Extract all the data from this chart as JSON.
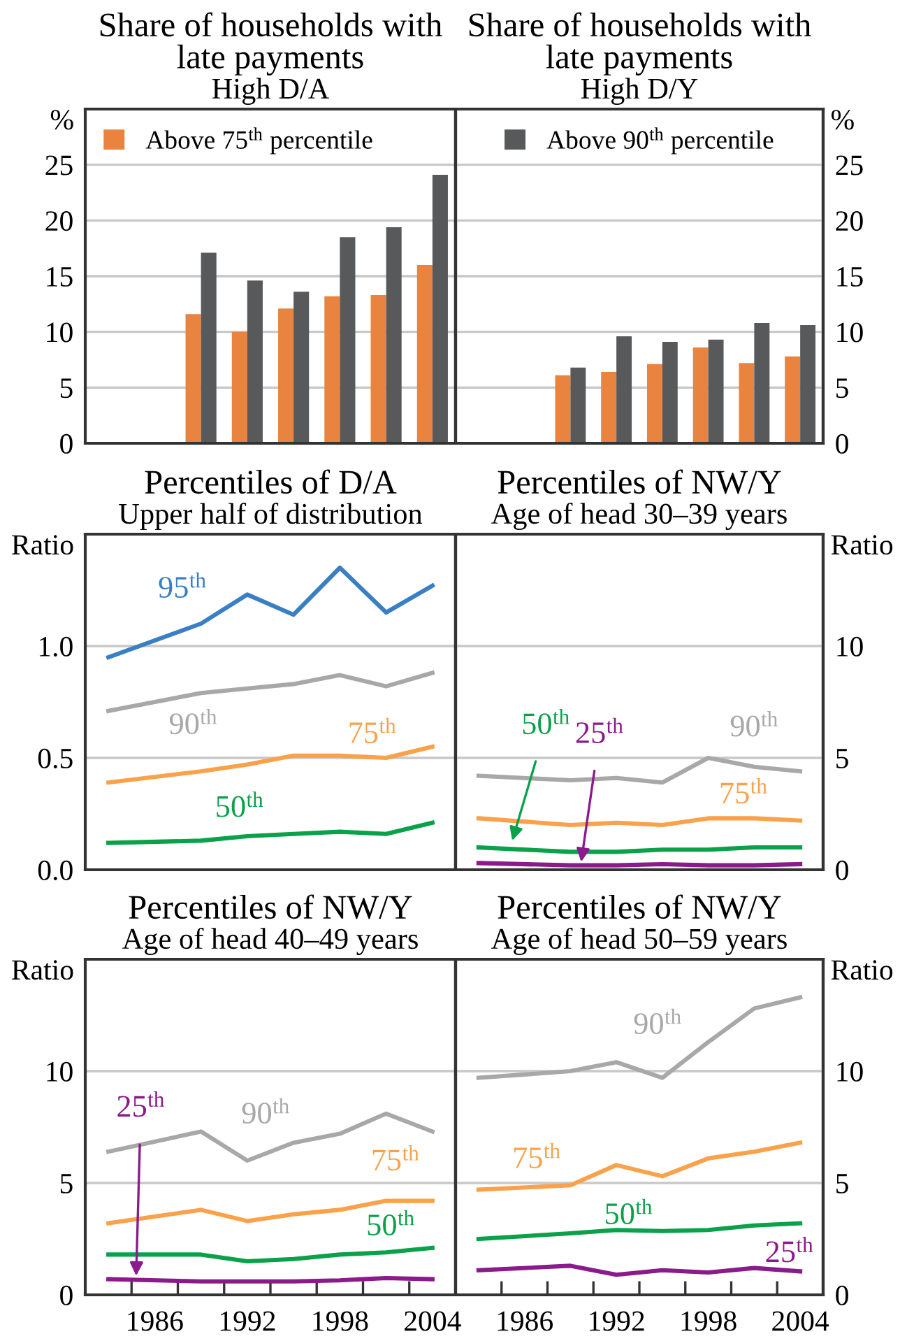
{
  "chart_data": [
    {
      "type": "bar",
      "title": "Share of households with late payments",
      "subtitle": "High D/A",
      "ylabel": "%",
      "xlim": [
        1981.5,
        2005.5
      ],
      "ylim": [
        0,
        30
      ],
      "yticks": [
        0,
        5,
        10,
        15,
        20,
        25
      ],
      "grid": "y",
      "legend": "top left",
      "tick_labels": "y",
      "series": [
        {
          "name": "Above 75$^{th}$ percentile",
          "color": "#e8843f",
          "x": [
            1989,
            1992,
            1995,
            1998,
            2001,
            2004
          ],
          "values": [
            11.6,
            10.0,
            12.1,
            13.2,
            13.3,
            16.0
          ]
        },
        {
          "color": "#58595b",
          "x": [
            1989,
            1992,
            1995,
            1998,
            2001,
            2004
          ],
          "values": [
            17.1,
            14.6,
            13.6,
            18.5,
            19.4,
            24.1
          ]
        }
      ]
    },
    {
      "type": "bar",
      "title": "Share of households with late payments",
      "subtitle": "High D/Y",
      "y2label": "%",
      "xlim": [
        1981.5,
        2005.5
      ],
      "y2lim": [
        0,
        30
      ],
      "y2ticks": [
        0,
        5,
        10,
        15,
        20,
        25
      ],
      "grid": "y",
      "legend": "top",
      "tick_labels": "y2",
      "series": [
        {
          "color": "#e8843f",
          "axis": "y2",
          "x": [
            1989,
            1992,
            1995,
            1998,
            2001,
            2004
          ],
          "values": [
            6.1,
            6.4,
            7.1,
            8.6,
            7.2,
            7.8
          ]
        },
        {
          "name": "Above 90$^{th}$ percentile",
          "color": "#58595b",
          "axis": "y2",
          "x": [
            1989,
            1992,
            1995,
            1998,
            2001,
            2004
          ],
          "values": [
            6.8,
            9.6,
            9.1,
            9.3,
            10.8,
            10.6
          ]
        }
      ]
    },
    {
      "type": "line",
      "title": "Percentiles of D/A",
      "subtitle": "Upper half of distribution",
      "ylabel": "Ratio",
      "xlim": [
        1981.5,
        2005.5
      ],
      "ylim": [
        0,
        1.5
      ],
      "yticks": [
        {
          "value": 0,
          "label": "0.0"
        },
        {
          "value": 0.5,
          "label": "0.5"
        },
        {
          "value": 1,
          "label": "1.0"
        }
      ],
      "grid": "y",
      "tick_labels": "y",
      "x": [
        1983,
        1989,
        1992,
        1995,
        1998,
        2001,
        2004
      ],
      "series": [
        {
          "name": "95$^{th}$",
          "color": "#3a7fc4",
          "values": [
            0.95,
            1.1,
            1.23,
            1.14,
            1.35,
            1.15,
            1.27
          ]
        },
        {
          "name": "90$^{th}$",
          "color": "#a8a8a8",
          "values": [
            0.71,
            0.79,
            0.81,
            0.83,
            0.87,
            0.82,
            0.88
          ]
        },
        {
          "name": "75$^{th}$",
          "color": "#f9a24b",
          "values": [
            0.39,
            0.44,
            0.47,
            0.51,
            0.51,
            0.5,
            0.55
          ]
        },
        {
          "name": "50$^{th}$",
          "color": "#0ba14b",
          "values": [
            0.12,
            0.13,
            0.15,
            0.16,
            0.17,
            0.16,
            0.21
          ]
        }
      ]
    },
    {
      "type": "line",
      "title": "Percentiles of NW/Y",
      "subtitle": "Age of head 30–39 years",
      "y2label": "Ratio",
      "xlim": [
        1981.5,
        2005.5
      ],
      "y2lim": [
        0,
        15
      ],
      "y2ticks": [
        0,
        5,
        10
      ],
      "grid": "y",
      "tick_labels": "y2",
      "x": [
        1983,
        1989,
        1992,
        1995,
        1998,
        2001,
        2004
      ],
      "series": [
        {
          "name": "90$^{th}$",
          "color": "#a8a8a8",
          "axis": "y2",
          "values": [
            4.2,
            4.0,
            4.1,
            3.9,
            5.0,
            4.6,
            4.4
          ]
        },
        {
          "name": "75$^{th}$",
          "color": "#f9a24b",
          "axis": "y2",
          "values": [
            2.3,
            2.0,
            2.1,
            2.0,
            2.3,
            2.3,
            2.2
          ]
        },
        {
          "name": "50$^{th}$",
          "color": "#0ba14b",
          "axis": "y2",
          "values": [
            1.0,
            0.8,
            0.8,
            0.9,
            0.9,
            1.0,
            1.0
          ]
        },
        {
          "name": "25$^{th}$",
          "color": "#8b1a8b",
          "axis": "y2",
          "values": [
            0.3,
            0.2,
            0.2,
            0.25,
            0.2,
            0.2,
            0.25
          ]
        }
      ]
    },
    {
      "type": "line",
      "title": "Percentiles of NW/Y",
      "subtitle": "Age of head 40–49 years",
      "ylabel": "Ratio",
      "xlim": [
        1981.5,
        2005.5
      ],
      "ylim": [
        0,
        15
      ],
      "yticks": [
        0,
        5,
        10
      ],
      "xticks": [
        {
          "value": 1984.5,
          "label": null
        },
        1986,
        {
          "value": 1987.5,
          "label": null
        },
        {
          "value": 1990.5,
          "label": null
        },
        1992,
        {
          "value": 1993.5,
          "label": null
        },
        {
          "value": 1996.5,
          "label": null
        },
        1998,
        {
          "value": 1999.5,
          "label": null
        },
        {
          "value": 2002.5,
          "label": null
        },
        2004
      ],
      "grid": "y",
      "x": [
        1983,
        1989,
        1992,
        1995,
        1998,
        2001,
        2004
      ],
      "series": [
        {
          "name": "90$^{th}$",
          "color": "#a8a8a8",
          "values": [
            6.4,
            7.3,
            6.0,
            6.8,
            7.2,
            8.1,
            7.3
          ]
        },
        {
          "name": "75$^{th}$",
          "color": "#f9a24b",
          "values": [
            3.2,
            3.8,
            3.3,
            3.6,
            3.8,
            4.2,
            4.2
          ]
        },
        {
          "name": "50$^{th}$",
          "color": "#0ba14b",
          "values": [
            1.8,
            1.8,
            1.5,
            1.6,
            1.8,
            1.9,
            2.1
          ]
        },
        {
          "name": "25$^{th}$",
          "color": "#8b1a8b",
          "values": [
            0.7,
            0.6,
            0.6,
            0.6,
            0.65,
            0.75,
            0.7
          ]
        }
      ]
    },
    {
      "type": "line",
      "title": "Percentiles of NW/Y",
      "subtitle": "Age of head 50–59 years",
      "y2label": "Ratio",
      "xlim": [
        1981.5,
        2005.5
      ],
      "y2lim": [
        0,
        15
      ],
      "y2ticks": [
        0,
        5,
        10
      ],
      "xticks": [
        {
          "value": 1984.5,
          "label": null
        },
        1986,
        {
          "value": 1987.5,
          "label": null
        },
        {
          "value": 1990.5,
          "label": null
        },
        1992,
        {
          "value": 1993.5,
          "label": null
        },
        {
          "value": 1996.5,
          "label": null
        },
        1998,
        {
          "value": 1999.5,
          "label": null
        },
        {
          "value": 2002.5,
          "label": null
        },
        2004
      ],
      "grid": "y",
      "x": [
        1983,
        1989,
        1992,
        1995,
        1998,
        2001,
        2004
      ],
      "series": [
        {
          "name": "90$^{th}$",
          "color": "#a8a8a8",
          "axis": "y2",
          "values": [
            9.7,
            10.0,
            10.4,
            9.7,
            11.3,
            12.8,
            13.3
          ]
        },
        {
          "name": "75$^{th}$",
          "color": "#f9a24b",
          "axis": "y2",
          "values": [
            4.7,
            4.9,
            5.8,
            5.3,
            6.1,
            6.4,
            6.8
          ]
        },
        {
          "name": "50$^{th}$",
          "color": "#0ba14b",
          "axis": "y2",
          "values": [
            2.5,
            2.75,
            2.9,
            2.85,
            2.9,
            3.1,
            3.2
          ]
        },
        {
          "name": "25$^{th}$",
          "color": "#8b1a8b",
          "axis": "y2",
          "values": [
            1.1,
            1.3,
            0.9,
            1.1,
            1.0,
            1.2,
            1.05
          ]
        }
      ]
    }
  ]
}
